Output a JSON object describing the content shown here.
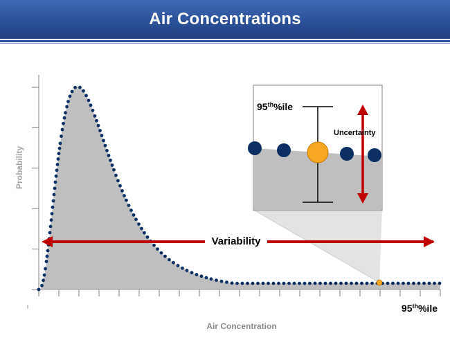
{
  "header": {
    "title": "Air Concentrations"
  },
  "axes": {
    "ylabel": "Probability",
    "xlabel": "Air Concentration",
    "percentile_label": {
      "base": "95",
      "sup": "th",
      "suffix": "%ile"
    }
  },
  "annotations": {
    "variability": "Variability",
    "uncertainty": "Uncertainty",
    "inset_percentile": {
      "base": "95",
      "sup": "th",
      "suffix": "%ile"
    }
  },
  "colors": {
    "title_bar": "#2b5299",
    "curve_fill": "#bfbfbf",
    "curve_dots": "#0b2f63",
    "arrow_red": "#c00000",
    "percentile_point": "#f5a623"
  },
  "chart_data": {
    "type": "area",
    "distribution": "right-skewed, lognormal-like",
    "x_ticks": 21,
    "y_ticks": 6,
    "highlight": "95th percentile point shown in orange on the curve"
  }
}
